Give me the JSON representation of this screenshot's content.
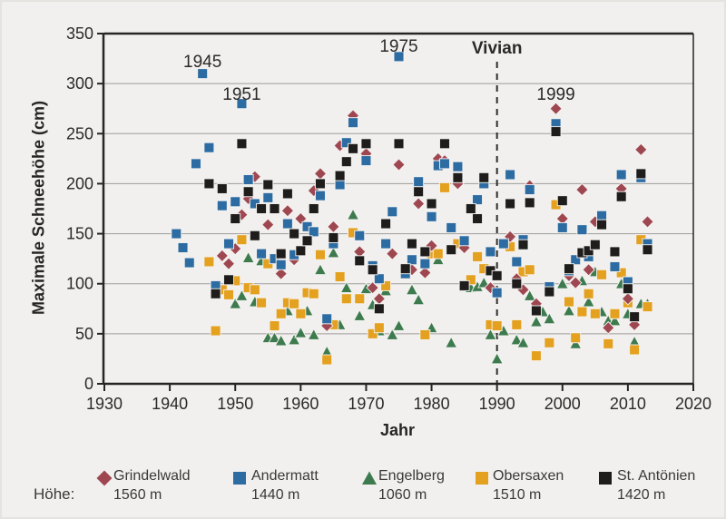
{
  "legend": {
    "prefix": "Höhe:"
  },
  "chart_data": {
    "type": "scatter",
    "title": "",
    "xlabel": "Jahr",
    "ylabel": "Maximale Schneehöhe (cm)",
    "xlim": [
      1930,
      2020
    ],
    "ylim": [
      0,
      350
    ],
    "x_ticks": [
      1930,
      1940,
      1950,
      1960,
      1970,
      1980,
      1990,
      2000,
      2010,
      2020
    ],
    "y_ticks": [
      0,
      50,
      100,
      150,
      200,
      250,
      300,
      350
    ],
    "grid": "horizontal",
    "colors": {
      "grindelwald": "#9e4750",
      "andermatt": "#2d6ca2",
      "engelberg": "#3d7a4e",
      "obersaxen": "#e4a01f",
      "st_antonien": "#1e1d1b",
      "axis": "#262523",
      "gridline": "#9e9d9b",
      "text": "#2b2a28"
    },
    "vline": {
      "x": 1990,
      "label": "Vivian",
      "style": "dashed"
    },
    "annotations": [
      {
        "label": "1945",
        "year": 1945,
        "top": 59
      },
      {
        "label": "1951",
        "year": 1951,
        "top": 95
      },
      {
        "label": "1975",
        "year": 1975,
        "top": 42
      },
      {
        "label": "1999",
        "year": 1999,
        "top": 95
      },
      {
        "label": "Vivian",
        "year": 1990,
        "top": 44,
        "bold": true
      }
    ],
    "series": [
      {
        "name": "Grindelwald",
        "elevation": "1560 m",
        "marker": "diamond",
        "color": "#9e4750",
        "points": [
          [
            1948,
            128
          ],
          [
            1949,
            120
          ],
          [
            1950,
            135
          ],
          [
            1951,
            169
          ],
          [
            1952,
            185
          ],
          [
            1953,
            207
          ],
          [
            1955,
            159
          ],
          [
            1957,
            110
          ],
          [
            1958,
            173
          ],
          [
            1959,
            124
          ],
          [
            1960,
            165
          ],
          [
            1961,
            157
          ],
          [
            1962,
            193
          ],
          [
            1963,
            210
          ],
          [
            1964,
            58
          ],
          [
            1965,
            157
          ],
          [
            1966,
            238
          ],
          [
            1968,
            268
          ],
          [
            1969,
            132
          ],
          [
            1970,
            230
          ],
          [
            1971,
            96
          ],
          [
            1972,
            85
          ],
          [
            1974,
            130
          ],
          [
            1975,
            219
          ],
          [
            1977,
            114
          ],
          [
            1978,
            180
          ],
          [
            1979,
            111
          ],
          [
            1980,
            138
          ],
          [
            1981,
            225
          ],
          [
            1982,
            223
          ],
          [
            1984,
            200
          ],
          [
            1985,
            136
          ],
          [
            1989,
            96
          ],
          [
            1992,
            147
          ],
          [
            1993,
            105
          ],
          [
            1994,
            94
          ],
          [
            1995,
            198
          ],
          [
            1996,
            80
          ],
          [
            1999,
            275
          ],
          [
            2000,
            165
          ],
          [
            2001,
            108
          ],
          [
            2002,
            101
          ],
          [
            2003,
            194
          ],
          [
            2004,
            114
          ],
          [
            2005,
            162
          ],
          [
            2007,
            56
          ],
          [
            2009,
            195
          ],
          [
            2010,
            85
          ],
          [
            2011,
            59
          ],
          [
            2012,
            234
          ],
          [
            2013,
            162
          ]
        ]
      },
      {
        "name": "Andermatt",
        "elevation": "1440 m",
        "marker": "square",
        "color": "#2d6ca2",
        "points": [
          [
            1941,
            150
          ],
          [
            1942,
            136
          ],
          [
            1943,
            121
          ],
          [
            1944,
            220
          ],
          [
            1945,
            310
          ],
          [
            1946,
            236
          ],
          [
            1947,
            98
          ],
          [
            1948,
            178
          ],
          [
            1949,
            140
          ],
          [
            1950,
            182
          ],
          [
            1951,
            280
          ],
          [
            1952,
            204
          ],
          [
            1953,
            180
          ],
          [
            1954,
            130
          ],
          [
            1955,
            186
          ],
          [
            1956,
            125
          ],
          [
            1957,
            119
          ],
          [
            1958,
            160
          ],
          [
            1959,
            129
          ],
          [
            1961,
            157
          ],
          [
            1962,
            152
          ],
          [
            1963,
            188
          ],
          [
            1964,
            65
          ],
          [
            1965,
            140
          ],
          [
            1966,
            199
          ],
          [
            1967,
            241
          ],
          [
            1968,
            261
          ],
          [
            1969,
            148
          ],
          [
            1970,
            223
          ],
          [
            1971,
            118
          ],
          [
            1972,
            105
          ],
          [
            1973,
            140
          ],
          [
            1974,
            172
          ],
          [
            1975,
            327
          ],
          [
            1976,
            110
          ],
          [
            1977,
            124
          ],
          [
            1978,
            202
          ],
          [
            1979,
            120
          ],
          [
            1980,
            167
          ],
          [
            1981,
            218
          ],
          [
            1982,
            220
          ],
          [
            1983,
            156
          ],
          [
            1984,
            217
          ],
          [
            1985,
            143
          ],
          [
            1987,
            184
          ],
          [
            1988,
            200
          ],
          [
            1989,
            132
          ],
          [
            1990,
            91
          ],
          [
            1991,
            140
          ],
          [
            1992,
            209
          ],
          [
            1993,
            122
          ],
          [
            1994,
            144
          ],
          [
            1995,
            194
          ],
          [
            1998,
            97
          ],
          [
            1999,
            260
          ],
          [
            2000,
            156
          ],
          [
            2001,
            113
          ],
          [
            2002,
            124
          ],
          [
            2003,
            154
          ],
          [
            2004,
            127
          ],
          [
            2006,
            168
          ],
          [
            2008,
            117
          ],
          [
            2009,
            209
          ],
          [
            2010,
            102
          ],
          [
            2012,
            206
          ],
          [
            2013,
            140
          ]
        ]
      },
      {
        "name": "Engelberg",
        "elevation": "1060 m",
        "marker": "triangle",
        "color": "#3d7a4e",
        "points": [
          [
            1950,
            80
          ],
          [
            1951,
            88
          ],
          [
            1952,
            126
          ],
          [
            1953,
            82
          ],
          [
            1954,
            123
          ],
          [
            1955,
            46
          ],
          [
            1956,
            46
          ],
          [
            1957,
            43
          ],
          [
            1958,
            73
          ],
          [
            1959,
            44
          ],
          [
            1960,
            51
          ],
          [
            1961,
            73
          ],
          [
            1962,
            49
          ],
          [
            1963,
            114
          ],
          [
            1964,
            32
          ],
          [
            1965,
            131
          ],
          [
            1966,
            59
          ],
          [
            1967,
            96
          ],
          [
            1968,
            169
          ],
          [
            1969,
            68
          ],
          [
            1970,
            95
          ],
          [
            1971,
            79
          ],
          [
            1972,
            53
          ],
          [
            1973,
            93
          ],
          [
            1974,
            49
          ],
          [
            1975,
            58
          ],
          [
            1977,
            94
          ],
          [
            1978,
            84
          ],
          [
            1980,
            56
          ],
          [
            1981,
            124
          ],
          [
            1983,
            41
          ],
          [
            1985,
            97
          ],
          [
            1986,
            96
          ],
          [
            1987,
            97
          ],
          [
            1988,
            101
          ],
          [
            1989,
            49
          ],
          [
            1990,
            25
          ],
          [
            1991,
            53
          ],
          [
            1993,
            44
          ],
          [
            1994,
            41
          ],
          [
            1995,
            88
          ],
          [
            1996,
            62
          ],
          [
            1997,
            72
          ],
          [
            1998,
            65
          ],
          [
            2000,
            100
          ],
          [
            2001,
            73
          ],
          [
            2002,
            40
          ],
          [
            2003,
            103
          ],
          [
            2004,
            82
          ],
          [
            2005,
            112
          ],
          [
            2006,
            72
          ],
          [
            2007,
            63
          ],
          [
            2008,
            63
          ],
          [
            2009,
            100
          ],
          [
            2010,
            70
          ],
          [
            2011,
            42
          ],
          [
            2012,
            80
          ],
          [
            2013,
            80
          ]
        ]
      },
      {
        "name": "Obersaxen",
        "elevation": "1510 m",
        "marker": "square",
        "color": "#e4a01f",
        "points": [
          [
            1946,
            122
          ],
          [
            1947,
            53
          ],
          [
            1948,
            94
          ],
          [
            1949,
            89
          ],
          [
            1950,
            103
          ],
          [
            1951,
            144
          ],
          [
            1952,
            96
          ],
          [
            1953,
            94
          ],
          [
            1954,
            81
          ],
          [
            1955,
            120
          ],
          [
            1956,
            58
          ],
          [
            1957,
            70
          ],
          [
            1958,
            81
          ],
          [
            1959,
            80
          ],
          [
            1960,
            70
          ],
          [
            1961,
            91
          ],
          [
            1962,
            90
          ],
          [
            1963,
            129
          ],
          [
            1964,
            24
          ],
          [
            1965,
            59
          ],
          [
            1966,
            107
          ],
          [
            1967,
            85
          ],
          [
            1968,
            151
          ],
          [
            1969,
            85
          ],
          [
            1971,
            50
          ],
          [
            1972,
            56
          ],
          [
            1973,
            98
          ],
          [
            1979,
            49
          ],
          [
            1980,
            130
          ],
          [
            1981,
            130
          ],
          [
            1982,
            196
          ],
          [
            1984,
            140
          ],
          [
            1986,
            104
          ],
          [
            1987,
            127
          ],
          [
            1988,
            115
          ],
          [
            1989,
            59
          ],
          [
            1990,
            58
          ],
          [
            1992,
            137
          ],
          [
            1993,
            59
          ],
          [
            1994,
            112
          ],
          [
            1995,
            114
          ],
          [
            1996,
            28
          ],
          [
            1998,
            41
          ],
          [
            1999,
            179
          ],
          [
            2001,
            82
          ],
          [
            2002,
            46
          ],
          [
            2003,
            72
          ],
          [
            2004,
            90
          ],
          [
            2005,
            70
          ],
          [
            2006,
            109
          ],
          [
            2007,
            40
          ],
          [
            2008,
            70
          ],
          [
            2009,
            111
          ],
          [
            2010,
            81
          ],
          [
            2011,
            34
          ],
          [
            2012,
            144
          ],
          [
            2013,
            77
          ]
        ]
      },
      {
        "name": "St. Antönien",
        "elevation": "1420 m",
        "marker": "square",
        "color": "#1e1d1b",
        "points": [
          [
            1946,
            200
          ],
          [
            1947,
            90
          ],
          [
            1948,
            195
          ],
          [
            1949,
            104
          ],
          [
            1950,
            165
          ],
          [
            1951,
            240
          ],
          [
            1952,
            192
          ],
          [
            1953,
            148
          ],
          [
            1954,
            175
          ],
          [
            1955,
            199
          ],
          [
            1956,
            175
          ],
          [
            1957,
            130
          ],
          [
            1958,
            190
          ],
          [
            1959,
            150
          ],
          [
            1960,
            133
          ],
          [
            1961,
            143
          ],
          [
            1962,
            175
          ],
          [
            1963,
            200
          ],
          [
            1965,
            146
          ],
          [
            1966,
            208
          ],
          [
            1967,
            222
          ],
          [
            1968,
            235
          ],
          [
            1969,
            123
          ],
          [
            1970,
            240
          ],
          [
            1971,
            114
          ],
          [
            1972,
            75
          ],
          [
            1973,
            160
          ],
          [
            1975,
            240
          ],
          [
            1976,
            115
          ],
          [
            1977,
            140
          ],
          [
            1978,
            192
          ],
          [
            1979,
            132
          ],
          [
            1980,
            180
          ],
          [
            1982,
            240
          ],
          [
            1983,
            134
          ],
          [
            1984,
            206
          ],
          [
            1985,
            98
          ],
          [
            1986,
            175
          ],
          [
            1987,
            165
          ],
          [
            1988,
            206
          ],
          [
            1989,
            113
          ],
          [
            1990,
            108
          ],
          [
            1992,
            180
          ],
          [
            1993,
            100
          ],
          [
            1994,
            139
          ],
          [
            1995,
            181
          ],
          [
            1996,
            73
          ],
          [
            1998,
            92
          ],
          [
            1999,
            252
          ],
          [
            2000,
            183
          ],
          [
            2001,
            115
          ],
          [
            2003,
            131
          ],
          [
            2004,
            133
          ],
          [
            2005,
            139
          ],
          [
            2006,
            159
          ],
          [
            2008,
            132
          ],
          [
            2009,
            187
          ],
          [
            2010,
            95
          ],
          [
            2011,
            67
          ],
          [
            2012,
            210
          ],
          [
            2013,
            134
          ]
        ]
      }
    ]
  }
}
